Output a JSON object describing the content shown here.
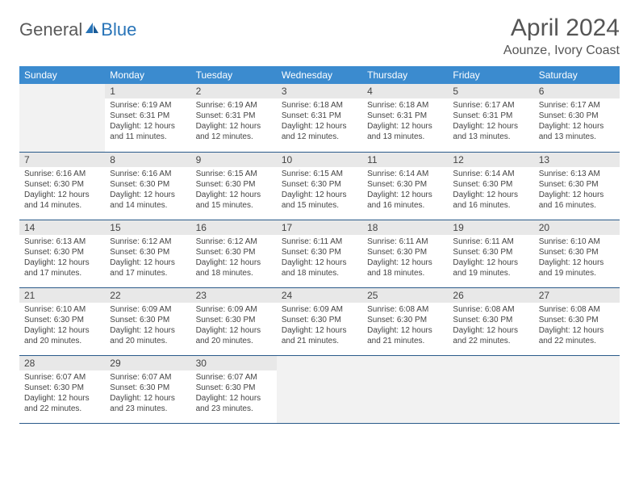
{
  "logo": {
    "text_general": "General",
    "text_blue": "Blue"
  },
  "title": "April 2024",
  "location": "Aounze, Ivory Coast",
  "colors": {
    "header_bg": "#3b8bcf",
    "header_fg": "#ffffff",
    "row_border": "#2a5a8a",
    "daynum_bg": "#e8e8e8",
    "empty_bg": "#f2f2f2",
    "text": "#444444"
  },
  "weekdays": [
    "Sunday",
    "Monday",
    "Tuesday",
    "Wednesday",
    "Thursday",
    "Friday",
    "Saturday"
  ],
  "weeks": [
    [
      null,
      {
        "n": "1",
        "sr": "Sunrise: 6:19 AM",
        "ss": "Sunset: 6:31 PM",
        "dl": "Daylight: 12 hours and 11 minutes."
      },
      {
        "n": "2",
        "sr": "Sunrise: 6:19 AM",
        "ss": "Sunset: 6:31 PM",
        "dl": "Daylight: 12 hours and 12 minutes."
      },
      {
        "n": "3",
        "sr": "Sunrise: 6:18 AM",
        "ss": "Sunset: 6:31 PM",
        "dl": "Daylight: 12 hours and 12 minutes."
      },
      {
        "n": "4",
        "sr": "Sunrise: 6:18 AM",
        "ss": "Sunset: 6:31 PM",
        "dl": "Daylight: 12 hours and 13 minutes."
      },
      {
        "n": "5",
        "sr": "Sunrise: 6:17 AM",
        "ss": "Sunset: 6:31 PM",
        "dl": "Daylight: 12 hours and 13 minutes."
      },
      {
        "n": "6",
        "sr": "Sunrise: 6:17 AM",
        "ss": "Sunset: 6:30 PM",
        "dl": "Daylight: 12 hours and 13 minutes."
      }
    ],
    [
      {
        "n": "7",
        "sr": "Sunrise: 6:16 AM",
        "ss": "Sunset: 6:30 PM",
        "dl": "Daylight: 12 hours and 14 minutes."
      },
      {
        "n": "8",
        "sr": "Sunrise: 6:16 AM",
        "ss": "Sunset: 6:30 PM",
        "dl": "Daylight: 12 hours and 14 minutes."
      },
      {
        "n": "9",
        "sr": "Sunrise: 6:15 AM",
        "ss": "Sunset: 6:30 PM",
        "dl": "Daylight: 12 hours and 15 minutes."
      },
      {
        "n": "10",
        "sr": "Sunrise: 6:15 AM",
        "ss": "Sunset: 6:30 PM",
        "dl": "Daylight: 12 hours and 15 minutes."
      },
      {
        "n": "11",
        "sr": "Sunrise: 6:14 AM",
        "ss": "Sunset: 6:30 PM",
        "dl": "Daylight: 12 hours and 16 minutes."
      },
      {
        "n": "12",
        "sr": "Sunrise: 6:14 AM",
        "ss": "Sunset: 6:30 PM",
        "dl": "Daylight: 12 hours and 16 minutes."
      },
      {
        "n": "13",
        "sr": "Sunrise: 6:13 AM",
        "ss": "Sunset: 6:30 PM",
        "dl": "Daylight: 12 hours and 16 minutes."
      }
    ],
    [
      {
        "n": "14",
        "sr": "Sunrise: 6:13 AM",
        "ss": "Sunset: 6:30 PM",
        "dl": "Daylight: 12 hours and 17 minutes."
      },
      {
        "n": "15",
        "sr": "Sunrise: 6:12 AM",
        "ss": "Sunset: 6:30 PM",
        "dl": "Daylight: 12 hours and 17 minutes."
      },
      {
        "n": "16",
        "sr": "Sunrise: 6:12 AM",
        "ss": "Sunset: 6:30 PM",
        "dl": "Daylight: 12 hours and 18 minutes."
      },
      {
        "n": "17",
        "sr": "Sunrise: 6:11 AM",
        "ss": "Sunset: 6:30 PM",
        "dl": "Daylight: 12 hours and 18 minutes."
      },
      {
        "n": "18",
        "sr": "Sunrise: 6:11 AM",
        "ss": "Sunset: 6:30 PM",
        "dl": "Daylight: 12 hours and 18 minutes."
      },
      {
        "n": "19",
        "sr": "Sunrise: 6:11 AM",
        "ss": "Sunset: 6:30 PM",
        "dl": "Daylight: 12 hours and 19 minutes."
      },
      {
        "n": "20",
        "sr": "Sunrise: 6:10 AM",
        "ss": "Sunset: 6:30 PM",
        "dl": "Daylight: 12 hours and 19 minutes."
      }
    ],
    [
      {
        "n": "21",
        "sr": "Sunrise: 6:10 AM",
        "ss": "Sunset: 6:30 PM",
        "dl": "Daylight: 12 hours and 20 minutes."
      },
      {
        "n": "22",
        "sr": "Sunrise: 6:09 AM",
        "ss": "Sunset: 6:30 PM",
        "dl": "Daylight: 12 hours and 20 minutes."
      },
      {
        "n": "23",
        "sr": "Sunrise: 6:09 AM",
        "ss": "Sunset: 6:30 PM",
        "dl": "Daylight: 12 hours and 20 minutes."
      },
      {
        "n": "24",
        "sr": "Sunrise: 6:09 AM",
        "ss": "Sunset: 6:30 PM",
        "dl": "Daylight: 12 hours and 21 minutes."
      },
      {
        "n": "25",
        "sr": "Sunrise: 6:08 AM",
        "ss": "Sunset: 6:30 PM",
        "dl": "Daylight: 12 hours and 21 minutes."
      },
      {
        "n": "26",
        "sr": "Sunrise: 6:08 AM",
        "ss": "Sunset: 6:30 PM",
        "dl": "Daylight: 12 hours and 22 minutes."
      },
      {
        "n": "27",
        "sr": "Sunrise: 6:08 AM",
        "ss": "Sunset: 6:30 PM",
        "dl": "Daylight: 12 hours and 22 minutes."
      }
    ],
    [
      {
        "n": "28",
        "sr": "Sunrise: 6:07 AM",
        "ss": "Sunset: 6:30 PM",
        "dl": "Daylight: 12 hours and 22 minutes."
      },
      {
        "n": "29",
        "sr": "Sunrise: 6:07 AM",
        "ss": "Sunset: 6:30 PM",
        "dl": "Daylight: 12 hours and 23 minutes."
      },
      {
        "n": "30",
        "sr": "Sunrise: 6:07 AM",
        "ss": "Sunset: 6:30 PM",
        "dl": "Daylight: 12 hours and 23 minutes."
      },
      null,
      null,
      null,
      null
    ]
  ]
}
